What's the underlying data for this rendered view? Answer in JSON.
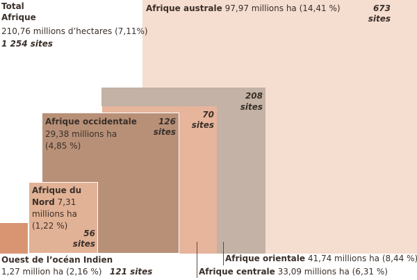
{
  "colors": {
    "total_outline": "#ffffff",
    "australe": "#f5ddd0",
    "orientale": "#c3b2a5",
    "centrale": "#e7b49c",
    "occidentale": "#b89078",
    "nord": "#e2b296",
    "ocean": "#d99572",
    "text": "#3a302a"
  },
  "total": {
    "title_line1": "Total",
    "title_line2": "Afrique",
    "area": "210,76 millions d’hectares",
    "pct": "(7,11%)",
    "sites": "1 254 sites"
  },
  "australe": {
    "name": "Afrique australe",
    "area": "97,97 millions ha",
    "pct": "(14,41 %)",
    "sites_num": "673",
    "sites_word": "sites"
  },
  "orientale": {
    "name": "Afrique orientale",
    "area": "41,74 millions ha",
    "pct": "(8,44 %)",
    "sites_num": "208",
    "sites_word": "sites"
  },
  "centrale": {
    "name": "Afrique centrale",
    "area": "33,09 millions ha",
    "pct": "(6,31 %)",
    "sites_num": "70",
    "sites_word": "sites"
  },
  "occidentale": {
    "name": "Afrique occidentale",
    "area": "29,38 millions ha",
    "pct": "(4,85 %)",
    "sites_num": "126",
    "sites_word": "sites"
  },
  "nord": {
    "name_line1": "Afrique du",
    "name_line2": "Nord",
    "area_num": "7,31",
    "area_unit": "millions ha",
    "pct": "(1,22 %)",
    "sites_num": "56",
    "sites_word": "sites"
  },
  "ocean": {
    "name": "Ouest de l’océan Indien",
    "area": "1,27 million ha",
    "pct": "(2,16 %)",
    "sites": "121 sites"
  }
}
